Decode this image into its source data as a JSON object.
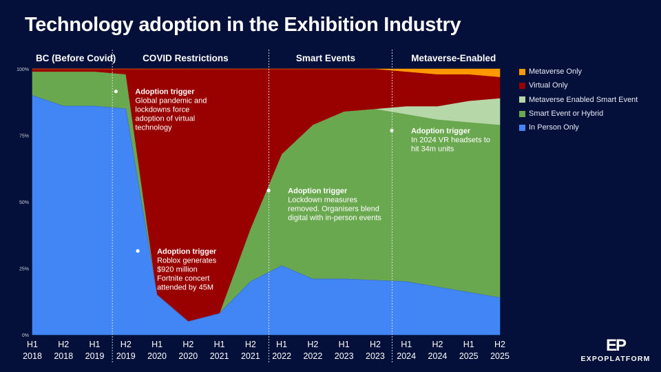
{
  "title": "Technology adoption in the Exhibition Industry",
  "phases": [
    {
      "label": "BC (Before Covid)",
      "start": 0,
      "end": 3
    },
    {
      "label": "COVID Restrictions",
      "start": 3,
      "end": 8
    },
    {
      "label": "Smart Events",
      "start": 8,
      "end": 12
    },
    {
      "label": "Metaverse-Enabled",
      "start": 12,
      "end": 15
    }
  ],
  "annotations": [
    {
      "heading": "Adoption trigger",
      "lines": [
        "Global pandemic and",
        "lockdowns force",
        "adoption of virtual",
        "technology"
      ],
      "x": 3.3,
      "y": 0.905
    },
    {
      "heading": "Adoption trigger",
      "lines": [
        "Roblox generates",
        "$920 million",
        "Fortnite concert",
        "attended by 45M"
      ],
      "x": 4.0,
      "y": 0.305
    },
    {
      "heading": "Adoption trigger",
      "lines": [
        "Lockdown measures",
        "removed. Organisers blend",
        "digital with in-person events"
      ],
      "x": 8.2,
      "y": 0.532
    },
    {
      "heading": "Adoption trigger",
      "lines": [
        "In 2024 VR headsets to",
        "hit 34m units"
      ],
      "x": 12.15,
      "y": 0.758
    }
  ],
  "chart_data": {
    "type": "area",
    "stacked": true,
    "categories": [
      "H1 2018",
      "H2 2018",
      "H1 2019",
      "H2 2019",
      "H1 2020",
      "H2 2020",
      "H1 2021",
      "H2 2021",
      "H1 2022",
      "H2 2022",
      "H1 2023",
      "H2 2023",
      "H1 2024",
      "H2 2024",
      "H1 2025",
      "H2 2025"
    ],
    "category_lines": [
      [
        "H1",
        "2018"
      ],
      [
        "H2",
        "2018"
      ],
      [
        "H1",
        "2019"
      ],
      [
        "H2",
        "2019"
      ],
      [
        "H1",
        "2020"
      ],
      [
        "H2",
        "2020"
      ],
      [
        "H1",
        "2021"
      ],
      [
        "H2",
        "2021"
      ],
      [
        "H1",
        "2022"
      ],
      [
        "H2",
        "2022"
      ],
      [
        "H1",
        "2023"
      ],
      [
        "H2",
        "2023"
      ],
      [
        "H1",
        "2024"
      ],
      [
        "H2",
        "2024"
      ],
      [
        "H1",
        "2025"
      ],
      [
        "H2",
        "2025"
      ]
    ],
    "yticks": [
      {
        "value": 0,
        "label": "0%"
      },
      {
        "value": 0.25,
        "label": "25%"
      },
      {
        "value": 0.5,
        "label": "50%"
      },
      {
        "value": 0.75,
        "label": "75%"
      },
      {
        "value": 1.0,
        "label": "100%"
      }
    ],
    "ylim": [
      0,
      1
    ],
    "series": [
      {
        "name": "In Person Only",
        "color": "#4285f4",
        "values": [
          0.9,
          0.86,
          0.86,
          0.85,
          0.15,
          0.05,
          0.08,
          0.2,
          0.26,
          0.21,
          0.21,
          0.205,
          0.2,
          0.18,
          0.16,
          0.14
        ]
      },
      {
        "name": "Smart Event or Hybrid",
        "color": "#6aa84f",
        "values": [
          0.09,
          0.13,
          0.13,
          0.13,
          0.0,
          0.0,
          0.0,
          0.2,
          0.42,
          0.58,
          0.63,
          0.645,
          0.63,
          0.63,
          0.64,
          0.65
        ]
      },
      {
        "name": "Metaverse Enabled Smart Event",
        "color": "#b6d7a8",
        "values": [
          0,
          0,
          0,
          0,
          0,
          0,
          0,
          0,
          0,
          0,
          0,
          0,
          0.03,
          0.05,
          0.08,
          0.1
        ]
      },
      {
        "name": "Virtual Only",
        "color": "#990000",
        "values": [
          0.01,
          0.01,
          0.01,
          0.02,
          0.85,
          0.95,
          0.92,
          0.6,
          0.32,
          0.21,
          0.16,
          0.15,
          0.13,
          0.12,
          0.1,
          0.08
        ]
      },
      {
        "name": "Metaverse Only",
        "color": "#ff9900",
        "values": [
          0,
          0,
          0,
          0,
          0,
          0,
          0,
          0,
          0,
          0,
          0,
          0,
          0.01,
          0.02,
          0.02,
          0.03
        ]
      }
    ],
    "legend": {
      "position": "right",
      "order": [
        "Metaverse Only",
        "Virtual Only",
        "Metaverse Enabled Smart Event",
        "Smart Event or Hybrid",
        "In Person Only"
      ]
    },
    "grid": false
  },
  "logo": {
    "mark": "EP",
    "text": "EXPOPLATFORM"
  }
}
